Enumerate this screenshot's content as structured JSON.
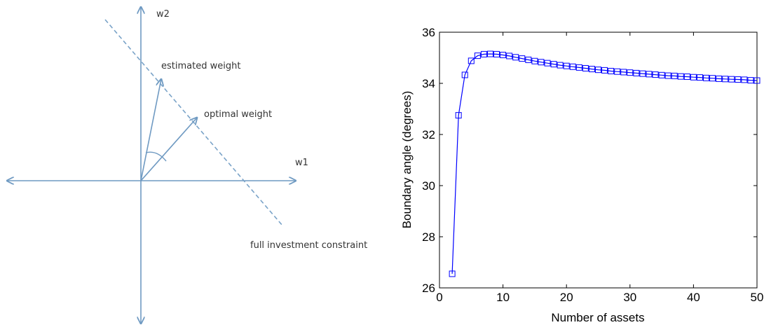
{
  "diagram": {
    "labels": {
      "w2": "w2",
      "w1": "w1",
      "estimated": "estimated weight",
      "optimal": "optimal weight",
      "constraint": "full investment constraint"
    },
    "colors": {
      "axis": "#6f9ac2",
      "dashed": "#7aa3c8"
    }
  },
  "chart_data": {
    "type": "line",
    "xlabel": "Number of assets",
    "ylabel": "Boundary angle (degrees)",
    "xlim": [
      0,
      50
    ],
    "ylim": [
      26,
      36
    ],
    "xticks": [
      0,
      10,
      20,
      30,
      40,
      50
    ],
    "yticks": [
      26,
      28,
      30,
      32,
      34,
      36
    ],
    "grid": false,
    "marker": "square",
    "series": [
      {
        "color": "#0000ff",
        "x": [
          2,
          3,
          4,
          5,
          6,
          7,
          8,
          9,
          10,
          11,
          12,
          13,
          14,
          15,
          16,
          17,
          18,
          19,
          20,
          21,
          22,
          23,
          24,
          25,
          26,
          27,
          28,
          29,
          30,
          31,
          32,
          33,
          34,
          35,
          36,
          37,
          38,
          39,
          40,
          41,
          42,
          43,
          44,
          45,
          46,
          47,
          48,
          49,
          50
        ],
        "y": [
          26.55,
          32.75,
          34.33,
          34.88,
          35.08,
          35.14,
          35.15,
          35.14,
          35.11,
          35.07,
          35.02,
          34.97,
          34.92,
          34.87,
          34.83,
          34.79,
          34.75,
          34.71,
          34.68,
          34.65,
          34.62,
          34.59,
          34.56,
          34.53,
          34.51,
          34.48,
          34.46,
          34.44,
          34.42,
          34.4,
          34.38,
          34.36,
          34.34,
          34.32,
          34.3,
          34.29,
          34.27,
          34.26,
          34.24,
          34.23,
          34.21,
          34.2,
          34.18,
          34.17,
          34.16,
          34.15,
          34.14,
          34.12,
          34.11
        ]
      }
    ]
  }
}
